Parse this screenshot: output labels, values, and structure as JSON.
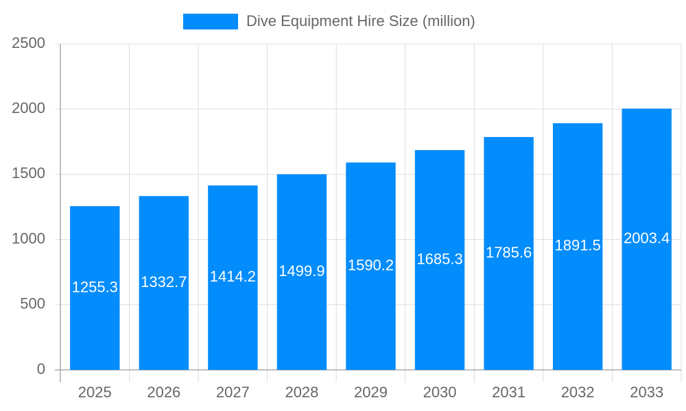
{
  "chart_data": {
    "type": "bar",
    "categories": [
      "2025",
      "2026",
      "2027",
      "2028",
      "2029",
      "2030",
      "2031",
      "2032",
      "2033"
    ],
    "series": [
      {
        "name": "Dive Equipment Hire Size (million)",
        "color": "#038cfc",
        "values": [
          1255.3,
          1332.7,
          1414.2,
          1499.9,
          1590.2,
          1685.3,
          1785.6,
          1891.5,
          2003.4
        ]
      }
    ],
    "ylim": [
      0,
      2500
    ],
    "yticks": [
      0,
      500,
      1000,
      1500,
      2000,
      2500
    ],
    "grid": true,
    "legend": "top",
    "data_labels": true
  }
}
